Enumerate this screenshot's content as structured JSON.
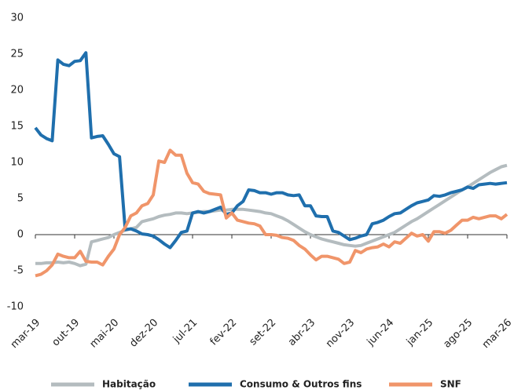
{
  "chart_data": {
    "type": "line",
    "categories": [
      "mar-19",
      null,
      null,
      null,
      null,
      null,
      null,
      "out-19",
      null,
      null,
      null,
      null,
      null,
      null,
      "mai-20",
      null,
      null,
      null,
      null,
      null,
      null,
      "dez-20",
      null,
      null,
      null,
      null,
      null,
      null,
      "jul-21",
      null,
      null,
      null,
      null,
      null,
      null,
      "fev-22",
      null,
      null,
      null,
      null,
      null,
      null,
      "set-22",
      null,
      null,
      null,
      null,
      null,
      null,
      "abr-23",
      null,
      null,
      null,
      null,
      null,
      null,
      "nov-23",
      null,
      null,
      null,
      null,
      null,
      null,
      "jun-24",
      null,
      null,
      null,
      null,
      null,
      null,
      "jan-25",
      null,
      null,
      null,
      null,
      null,
      null,
      "ago-25",
      null,
      null,
      null,
      null,
      null,
      null,
      "mar-26"
    ],
    "series": [
      {
        "name": "Habitação",
        "color": "#b4bcbf",
        "values": [
          -4,
          -4,
          -3.9,
          -3.9,
          -3.8,
          -3.9,
          -3.8,
          -4,
          -4.3,
          -4.1,
          -1,
          -0.8,
          -0.6,
          -0.4,
          0,
          0.3,
          0.6,
          0.8,
          1,
          1.8,
          2,
          2.2,
          2.5,
          2.7,
          2.8,
          3,
          3,
          2.9,
          3,
          3.1,
          3.2,
          3.2,
          3.3,
          3.4,
          3.4,
          3.5,
          3.5,
          3.5,
          3.4,
          3.3,
          3.2,
          3,
          2.9,
          2.6,
          2.3,
          1.9,
          1.4,
          0.9,
          0.4,
          0,
          -0.3,
          -0.6,
          -0.8,
          -1,
          -1.2,
          -1.4,
          -1.5,
          -1.6,
          -1.5,
          -1.2,
          -0.9,
          -0.6,
          -0.3,
          0,
          0.3,
          0.8,
          1.3,
          1.8,
          2.2,
          2.7,
          3.2,
          3.7,
          4.2,
          4.7,
          5.2,
          5.7,
          6.2,
          6.6,
          7.1,
          7.6,
          8.1,
          8.6,
          9,
          9.4,
          9.6
        ]
      },
      {
        "name": "Consumo & Outros fins",
        "color": "#1f6fad",
        "values": [
          14.8,
          13.8,
          13.3,
          13,
          24.2,
          23.6,
          23.4,
          24,
          24.1,
          25.2,
          13.4,
          13.6,
          13.7,
          12.5,
          11.2,
          10.8,
          0.7,
          0.8,
          0.5,
          0.1,
          0,
          -0.2,
          -0.7,
          -1.3,
          -1.8,
          -0.8,
          0.3,
          0.5,
          3,
          3.2,
          3,
          3.2,
          3.5,
          3.8,
          2.8,
          3,
          4,
          4.6,
          6.2,
          6.1,
          5.8,
          5.8,
          5.6,
          5.8,
          5.8,
          5.5,
          5.4,
          5.5,
          4,
          4,
          2.6,
          2.5,
          2.5,
          0.5,
          0.3,
          -0.2,
          -0.7,
          -0.5,
          -0.2,
          0,
          1.5,
          1.7,
          2,
          2.5,
          2.9,
          3,
          3.5,
          4,
          4.4,
          4.6,
          4.8,
          5.4,
          5.3,
          5.5,
          5.8,
          6,
          6.2,
          6.6,
          6.4,
          6.9,
          7,
          7.1,
          7,
          7.1,
          7.2
        ]
      },
      {
        "name": "SNF",
        "color": "#f0956a",
        "values": [
          -5.7,
          -5.5,
          -5,
          -4.2,
          -2.7,
          -3,
          -3.2,
          -3.2,
          -2.3,
          -3.7,
          -3.8,
          -3.8,
          -4.2,
          -3,
          -2,
          0,
          1,
          2.6,
          3,
          4,
          4.3,
          5.5,
          10.2,
          10,
          11.7,
          11,
          11,
          8.5,
          7.2,
          7,
          6,
          5.7,
          5.6,
          5.5,
          2.3,
          3,
          2,
          1.8,
          1.6,
          1.5,
          1.2,
          0,
          0,
          -0.1,
          -0.4,
          -0.5,
          -0.8,
          -1.5,
          -2,
          -2.8,
          -3.5,
          -3,
          -3,
          -3.2,
          -3.4,
          -4,
          -3.8,
          -2.2,
          -2.5,
          -2,
          -1.8,
          -1.7,
          -1.3,
          -1.7,
          -1,
          -1.2,
          -0.5,
          0.2,
          -0.2,
          0,
          -0.9,
          0.4,
          0.4,
          0.2,
          0.6,
          1.3,
          2,
          2,
          2.4,
          2.2,
          2.4,
          2.6,
          2.6,
          2.2,
          2.8
        ]
      }
    ],
    "ylim": [
      -10,
      30
    ],
    "yticks": [
      -10,
      -5,
      0,
      5,
      10,
      15,
      20,
      25,
      30
    ]
  }
}
